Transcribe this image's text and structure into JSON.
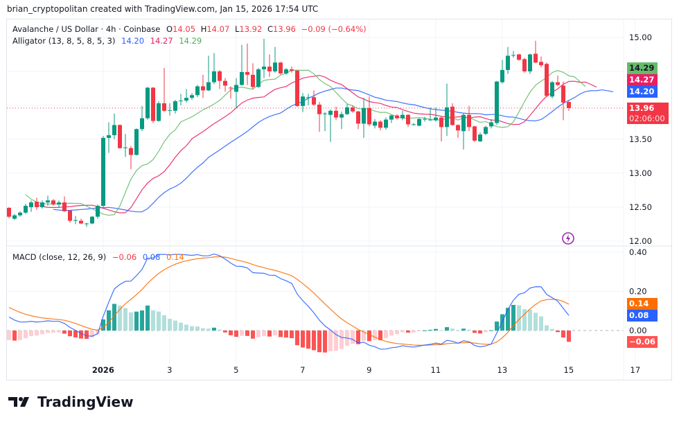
{
  "credit": "brian_cryptopolitan created with TradingView.com, Jan 15, 2026 17:54 UTC",
  "legend": {
    "symbol": "Avalanche / US Dollar · 4h · Coinbase",
    "o_label": "O",
    "o": "14.05",
    "h_label": "H",
    "h": "14.07",
    "l_label": "L",
    "l": "13.92",
    "c_label": "C",
    "c": "13.96",
    "change": "−0.09 (−0.64%)",
    "alligator": "Alligator (13, 8, 5, 8, 5, 3)",
    "jaw": "14.20",
    "teeth": "14.27",
    "lips": "14.29",
    "macd": "MACD (close, 12, 26, 9)",
    "hist": "−0.06",
    "macd_val": "0.08",
    "signal": "0.14"
  },
  "price_tags": {
    "lips": "14.29",
    "teeth": "14.27",
    "jaw": "14.20",
    "last": "13.96",
    "countdown": "02:06:00"
  },
  "macd_tags": {
    "signal": "0.14",
    "macd": "0.08",
    "hist": "−0.06"
  },
  "logo": "TradingView",
  "colors": {
    "up": "#089981",
    "down": "#F23645",
    "jaw": "#2962FF",
    "teeth": "#E91E63",
    "lips": "#66BB6A",
    "macd": "#2962FF",
    "signal": "#FF6D00"
  },
  "chart_data": {
    "type": "candlestick",
    "timeframe": "4h",
    "price_ticks": [
      "15.00",
      "13.50",
      "13.00",
      "12.50",
      "12.00"
    ],
    "price_tick_values": [
      15,
      13.5,
      13,
      12.5,
      12
    ],
    "price_grid": [
      15,
      14.5,
      14,
      13.5,
      13,
      12.5,
      12
    ],
    "ylim": [
      12,
      15
    ],
    "macd_ticks": [
      "0.40",
      "0.20",
      "0.00"
    ],
    "macd_tick_values": [
      0.4,
      0.2,
      0
    ],
    "x_ticks": [
      {
        "label": "2026",
        "day": 1
      },
      {
        "label": "3",
        "day": 3
      },
      {
        "label": "5",
        "day": 5
      },
      {
        "label": "7",
        "day": 7
      },
      {
        "label": "9",
        "day": 9
      },
      {
        "label": "11",
        "day": 11
      },
      {
        "label": "13",
        "day": 13
      },
      {
        "label": "15",
        "day": 15
      },
      {
        "label": "17",
        "day": 17
      }
    ],
    "first_candle_day": -1.83,
    "ohlc": [
      [
        12.49,
        12.5,
        12.34,
        12.36
      ],
      [
        12.33,
        12.4,
        12.31,
        12.38
      ],
      [
        12.38,
        12.44,
        12.36,
        12.42
      ],
      [
        12.42,
        12.55,
        12.4,
        12.52
      ],
      [
        12.5,
        12.6,
        12.43,
        12.57
      ],
      [
        12.58,
        12.64,
        12.46,
        12.5
      ],
      [
        12.5,
        12.6,
        12.48,
        12.57
      ],
      [
        12.57,
        12.67,
        12.52,
        12.6
      ],
      [
        12.6,
        12.62,
        12.52,
        12.54
      ],
      [
        12.54,
        12.6,
        12.49,
        12.57
      ],
      [
        12.57,
        12.66,
        12.43,
        12.44
      ],
      [
        12.45,
        12.46,
        12.27,
        12.3
      ],
      [
        12.3,
        12.37,
        12.25,
        12.31
      ],
      [
        12.3,
        12.33,
        12.25,
        12.26
      ],
      [
        12.26,
        12.27,
        12.21,
        12.26
      ],
      [
        12.26,
        12.37,
        12.25,
        12.36
      ],
      [
        12.36,
        12.54,
        12.33,
        12.52
      ],
      [
        12.52,
        13.55,
        12.5,
        13.52
      ],
      [
        13.52,
        13.75,
        13.3,
        13.56
      ],
      [
        13.56,
        13.88,
        13.5,
        13.71
      ],
      [
        13.71,
        13.72,
        13.36,
        13.37
      ],
      [
        13.38,
        13.58,
        13.24,
        13.38
      ],
      [
        13.37,
        13.4,
        13.06,
        13.27
      ],
      [
        13.27,
        13.66,
        13.26,
        13.65
      ],
      [
        13.65,
        13.99,
        13.62,
        13.81
      ],
      [
        13.81,
        14.27,
        13.79,
        14.26
      ],
      [
        14.26,
        14.27,
        13.74,
        13.77
      ],
      [
        13.77,
        14.06,
        13.76,
        14.03
      ],
      [
        14.03,
        14.55,
        13.9,
        13.92
      ],
      [
        13.92,
        14.03,
        13.85,
        13.93
      ],
      [
        13.92,
        14.08,
        13.88,
        14.06
      ],
      [
        14.06,
        14.17,
        14.0,
        14.07
      ],
      [
        14.07,
        14.24,
        14.04,
        14.11
      ],
      [
        14.11,
        14.18,
        14.08,
        14.15
      ],
      [
        14.15,
        14.3,
        14.12,
        14.28
      ],
      [
        14.28,
        14.45,
        14.11,
        14.22
      ],
      [
        14.22,
        14.73,
        14.21,
        14.34
      ],
      [
        14.34,
        14.77,
        14.31,
        14.5
      ],
      [
        14.5,
        14.52,
        14.24,
        14.36
      ],
      [
        14.36,
        14.4,
        14.2,
        14.29
      ],
      [
        14.26,
        14.28,
        14.1,
        14.25
      ],
      [
        14.2,
        14.4,
        13.96,
        14.3
      ],
      [
        14.3,
        14.89,
        14.29,
        14.49
      ],
      [
        14.49,
        14.91,
        14.3,
        14.45
      ],
      [
        14.45,
        14.62,
        14.24,
        14.27
      ],
      [
        14.27,
        14.55,
        14.26,
        14.53
      ],
      [
        14.53,
        14.98,
        14.4,
        14.57
      ],
      [
        14.57,
        14.75,
        14.42,
        14.5
      ],
      [
        14.5,
        14.86,
        14.48,
        14.63
      ],
      [
        14.63,
        14.64,
        14.45,
        14.47
      ],
      [
        14.47,
        14.55,
        14.45,
        14.53
      ],
      [
        14.53,
        14.57,
        14.48,
        14.51
      ],
      [
        14.51,
        14.52,
        13.98,
        13.99
      ],
      [
        13.99,
        14.18,
        13.9,
        14.13
      ],
      [
        14.12,
        14.17,
        14.0,
        14.12
      ],
      [
        14.12,
        14.22,
        13.99,
        14.01
      ],
      [
        14.01,
        14.05,
        13.61,
        13.87
      ],
      [
        13.88,
        13.9,
        13.62,
        13.88
      ],
      [
        13.86,
        13.94,
        13.46,
        13.92
      ],
      [
        13.92,
        13.98,
        13.78,
        13.82
      ],
      [
        13.82,
        13.91,
        13.65,
        13.87
      ],
      [
        13.87,
        14.02,
        13.86,
        13.97
      ],
      [
        13.97,
        14.0,
        13.89,
        13.91
      ],
      [
        13.91,
        13.92,
        13.65,
        13.73
      ],
      [
        13.73,
        14.11,
        13.52,
        13.96
      ],
      [
        13.96,
        14.13,
        13.69,
        13.72
      ],
      [
        13.7,
        13.8,
        13.66,
        13.76
      ],
      [
        13.76,
        13.78,
        13.63,
        13.67
      ],
      [
        13.67,
        13.82,
        13.64,
        13.79
      ],
      [
        13.79,
        13.86,
        13.74,
        13.85
      ],
      [
        13.85,
        13.87,
        13.79,
        13.81
      ],
      [
        13.81,
        13.92,
        13.78,
        13.86
      ],
      [
        13.86,
        13.87,
        13.68,
        13.72
      ],
      [
        13.72,
        13.74,
        13.7,
        13.72
      ],
      [
        13.7,
        13.81,
        13.69,
        13.8
      ],
      [
        13.8,
        13.83,
        13.76,
        13.8
      ],
      [
        13.79,
        13.97,
        13.77,
        13.79
      ],
      [
        13.78,
        13.97,
        13.76,
        13.82
      ],
      [
        13.82,
        13.84,
        13.47,
        13.68
      ],
      [
        13.68,
        14.32,
        13.55,
        13.97
      ],
      [
        13.98,
        14.03,
        13.7,
        13.71
      ],
      [
        13.71,
        13.72,
        13.52,
        13.63
      ],
      [
        13.62,
        13.88,
        13.35,
        13.86
      ],
      [
        13.86,
        13.99,
        13.62,
        13.68
      ],
      [
        13.69,
        13.7,
        13.46,
        13.48
      ],
      [
        13.47,
        13.6,
        13.46,
        13.57
      ],
      [
        13.58,
        13.7,
        13.56,
        13.68
      ],
      [
        13.69,
        13.8,
        13.66,
        13.75
      ],
      [
        13.74,
        14.36,
        13.71,
        14.35
      ],
      [
        14.34,
        14.67,
        14.32,
        14.52
      ],
      [
        14.52,
        14.86,
        14.46,
        14.73
      ],
      [
        14.74,
        14.8,
        14.7,
        14.74
      ],
      [
        14.75,
        14.76,
        14.66,
        14.67
      ],
      [
        14.68,
        14.7,
        14.48,
        14.5
      ],
      [
        14.5,
        14.76,
        14.46,
        14.75
      ],
      [
        14.76,
        14.95,
        14.62,
        14.63
      ],
      [
        14.64,
        14.72,
        14.56,
        14.59
      ],
      [
        14.61,
        14.63,
        14.12,
        14.14
      ],
      [
        14.13,
        14.36,
        14.1,
        14.34
      ],
      [
        14.34,
        14.44,
        14.28,
        14.3
      ],
      [
        14.29,
        14.35,
        13.78,
        14.04
      ],
      [
        14.05,
        14.07,
        13.92,
        13.96
      ]
    ],
    "last_price": 13.96,
    "indicator_seeds": {
      "jaw": 12.47,
      "teeth": 12.55,
      "lips": 12.75,
      "ema12": 12.54,
      "ema26": 12.45,
      "signal": 0.13
    }
  }
}
